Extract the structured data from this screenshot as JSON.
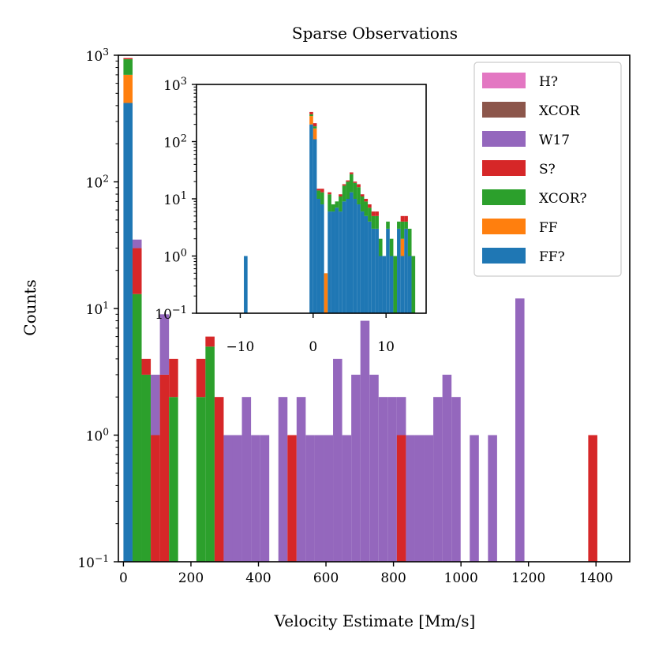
{
  "chart_data": [
    {
      "type": "bar",
      "stacked": true,
      "title": "Sparse Observations",
      "xlabel": "Velocity Estimate [Mm/s]",
      "ylabel": "Counts",
      "yscale": "log",
      "xlim": [
        -15,
        1500
      ],
      "ylim": [
        0.1,
        1000
      ],
      "xticks": [
        {
          "value": 0,
          "label": "0"
        },
        {
          "value": 200,
          "label": "200"
        },
        {
          "value": 400,
          "label": "400"
        },
        {
          "value": 600,
          "label": "600"
        },
        {
          "value": 800,
          "label": "800"
        },
        {
          "value": 1000,
          "label": "1000"
        },
        {
          "value": 1200,
          "label": "1200"
        },
        {
          "value": 1400,
          "label": "1400"
        }
      ],
      "yticks": [
        {
          "value": 0.1,
          "base": "10",
          "exp": "−1"
        },
        {
          "value": 1,
          "base": "10",
          "exp": "0"
        },
        {
          "value": 10,
          "base": "10",
          "exp": "1"
        },
        {
          "value": 100,
          "base": "10",
          "exp": "2"
        },
        {
          "value": 1000,
          "base": "10",
          "exp": "3"
        }
      ],
      "bin_width": 27,
      "legend_position": "upper-right",
      "series": [
        {
          "name": "FF?",
          "color": "#1f77b4",
          "data": [
            [
              0,
              420
            ]
          ]
        },
        {
          "name": "FF",
          "color": "#ff7f0e",
          "data": [
            [
              0,
              280
            ]
          ]
        },
        {
          "name": "XCOR?",
          "color": "#2ca02c",
          "data": [
            [
              0,
              230
            ],
            [
              27,
              13
            ],
            [
              54,
              3
            ],
            [
              135,
              2
            ],
            [
              216,
              2
            ],
            [
              243,
              5
            ]
          ]
        },
        {
          "name": "S?",
          "color": "#d62728",
          "data": [
            [
              0,
              20
            ],
            [
              27,
              17
            ],
            [
              54,
              1
            ],
            [
              81,
              1
            ],
            [
              108,
              3
            ],
            [
              135,
              2
            ],
            [
              216,
              2
            ],
            [
              243,
              1
            ],
            [
              270,
              2
            ],
            [
              486,
              1
            ],
            [
              810,
              1
            ],
            [
              1377,
              1
            ]
          ]
        },
        {
          "name": "W17",
          "color": "#9467bd",
          "data": [
            [
              27,
              5
            ],
            [
              81,
              2
            ],
            [
              108,
              6
            ],
            [
              297,
              1
            ],
            [
              324,
              1
            ],
            [
              351,
              2
            ],
            [
              378,
              1
            ],
            [
              405,
              1
            ],
            [
              459,
              2
            ],
            [
              513,
              2
            ],
            [
              540,
              1
            ],
            [
              567,
              1
            ],
            [
              594,
              1
            ],
            [
              621,
              4
            ],
            [
              648,
              1
            ],
            [
              675,
              3
            ],
            [
              702,
              8
            ],
            [
              729,
              3
            ],
            [
              756,
              2
            ],
            [
              783,
              2
            ],
            [
              810,
              1
            ],
            [
              837,
              1
            ],
            [
              864,
              1
            ],
            [
              891,
              1
            ],
            [
              918,
              2
            ],
            [
              945,
              3
            ],
            [
              972,
              2
            ],
            [
              1026,
              1
            ],
            [
              1080,
              1
            ],
            [
              1161,
              12
            ]
          ]
        },
        {
          "name": "XCOR",
          "color": "#8c564b",
          "data": []
        },
        {
          "name": "H?",
          "color": "#e377c2",
          "data": []
        }
      ],
      "legend_order": [
        "H?",
        "XCOR",
        "W17",
        "S?",
        "XCOR?",
        "FF",
        "FF?"
      ]
    },
    {
      "type": "bar",
      "stacked": true,
      "role": "inset",
      "yscale": "log",
      "xlim": [
        -16,
        15.5
      ],
      "ylim": [
        0.1,
        1000
      ],
      "xticks": [
        {
          "value": -10,
          "label": "−10"
        },
        {
          "value": 0,
          "label": "0"
        },
        {
          "value": 10,
          "label": "10"
        }
      ],
      "yticks": [
        {
          "value": 0.1,
          "base": "10",
          "exp": "−1"
        },
        {
          "value": 1,
          "base": "10",
          "exp": "0"
        },
        {
          "value": 10,
          "base": "10",
          "exp": "1"
        },
        {
          "value": 100,
          "base": "10",
          "exp": "2"
        },
        {
          "value": 1000,
          "base": "10",
          "exp": "3"
        }
      ],
      "bin_width": 0.5,
      "bins_x": [
        -9.5,
        -0.5,
        0,
        0.5,
        1,
        1.5,
        2,
        2.5,
        3,
        3.5,
        4,
        4.5,
        5,
        5.5,
        6,
        6.5,
        7,
        7.5,
        8,
        8.5,
        9,
        9.5,
        10,
        10.5,
        11,
        11.5,
        12,
        12.5,
        13,
        13.5
      ],
      "series": [
        {
          "name": "FF?",
          "color": "#1f77b4",
          "values": [
            1,
            200,
            110,
            10,
            8,
            0,
            6,
            6,
            7,
            6,
            9,
            10,
            13,
            10,
            8,
            6,
            5,
            4,
            3,
            3,
            1,
            1,
            3,
            1,
            0,
            3,
            1,
            3,
            1,
            0
          ]
        },
        {
          "name": "FF",
          "color": "#ff7f0e",
          "values": [
            0,
            80,
            60,
            0,
            0,
            0.5,
            0,
            0,
            0,
            0,
            0,
            0,
            0,
            0,
            0,
            0,
            0,
            0,
            0,
            0,
            0,
            0,
            0,
            0,
            0,
            0,
            1,
            0,
            0,
            0
          ]
        },
        {
          "name": "XCOR?",
          "color": "#2ca02c",
          "values": [
            0,
            20,
            15,
            4,
            5,
            0,
            6,
            2,
            2,
            5,
            8,
            10,
            14,
            9,
            8,
            5,
            4,
            3,
            2,
            2,
            1,
            0,
            1,
            1,
            1,
            1,
            2,
            1,
            2,
            1
          ]
        },
        {
          "name": "S?",
          "color": "#d62728",
          "values": [
            0,
            30,
            25,
            1,
            2,
            0,
            1,
            0,
            0,
            1,
            1,
            1,
            2,
            1,
            2,
            1,
            1,
            1,
            1,
            1,
            0,
            0,
            0,
            0,
            0,
            0,
            1,
            1,
            0,
            0
          ]
        },
        {
          "name": "W17",
          "color": "#9467bd",
          "values": [
            0,
            0,
            0,
            0,
            0,
            0,
            0,
            0,
            0,
            0,
            0,
            0,
            0,
            0,
            0,
            0,
            0,
            0,
            0,
            0,
            0,
            0,
            0,
            0,
            0,
            0,
            0,
            0,
            0,
            0
          ]
        }
      ]
    }
  ]
}
